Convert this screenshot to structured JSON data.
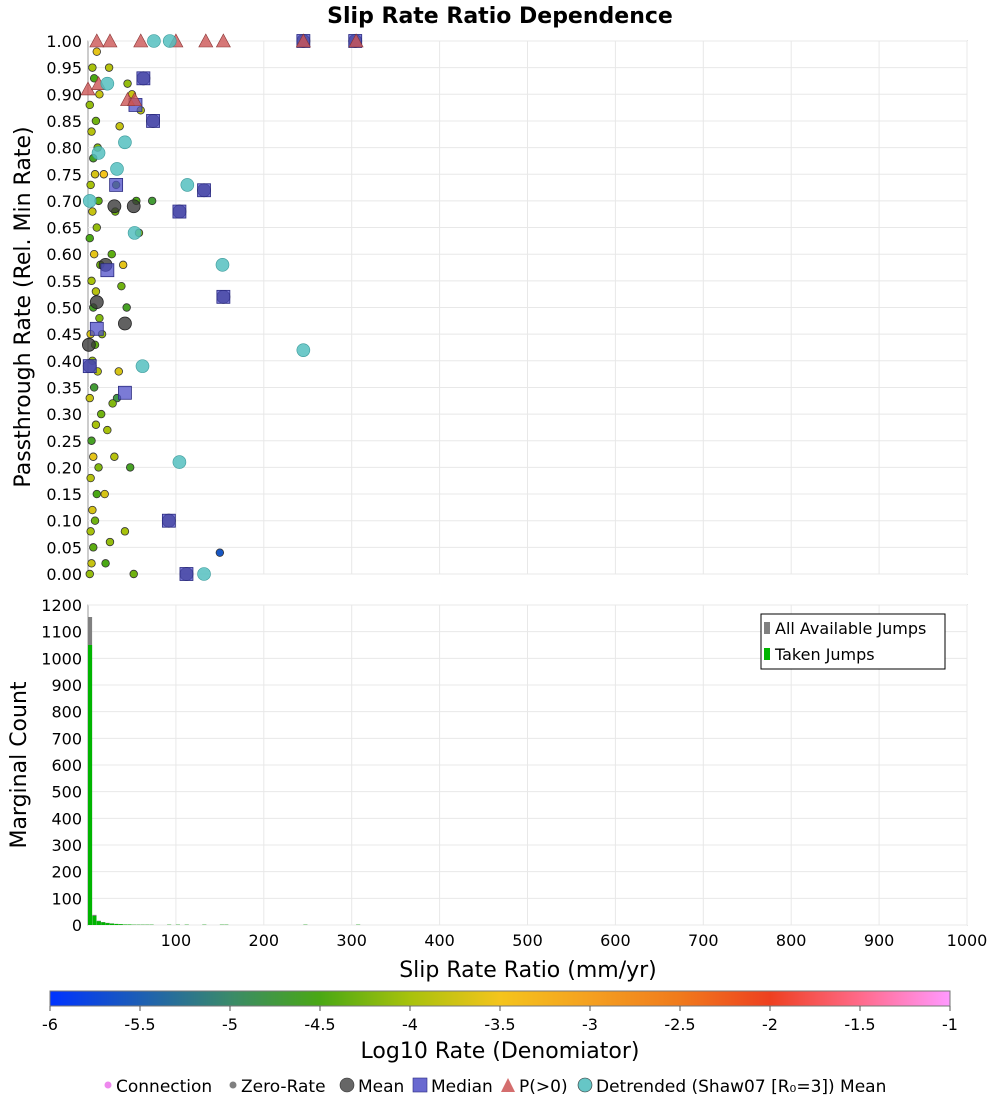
{
  "chart_data": [
    {
      "type": "scatter",
      "title": "Slip Rate Ratio Dependence",
      "ylabel": "Passthrough Rate (Rel. Min Rate)",
      "xlim": [
        0,
        1000
      ],
      "ylim": [
        0,
        1
      ],
      "y_ticks": [
        "0.00",
        "0.05",
        "0.10",
        "0.15",
        "0.20",
        "0.25",
        "0.30",
        "0.35",
        "0.40",
        "0.45",
        "0.50",
        "0.55",
        "0.60",
        "0.65",
        "0.70",
        "0.75",
        "0.80",
        "0.85",
        "0.90",
        "0.95",
        "1.00"
      ],
      "grid": true,
      "series": [
        {
          "name": "Connection",
          "color_scale": "log10_rate",
          "points": [
            [
              2,
              0.0,
              -4.1
            ],
            [
              4,
              0.02,
              -3.8
            ],
            [
              6,
              0.05,
              -4.4
            ],
            [
              3,
              0.08,
              -4.0
            ],
            [
              8,
              0.1,
              -4.3
            ],
            [
              5,
              0.12,
              -3.7
            ],
            [
              10,
              0.15,
              -4.5
            ],
            [
              3,
              0.18,
              -3.9
            ],
            [
              12,
              0.2,
              -4.2
            ],
            [
              6,
              0.22,
              -3.6
            ],
            [
              4,
              0.25,
              -4.6
            ],
            [
              9,
              0.28,
              -4.0
            ],
            [
              15,
              0.3,
              -4.3
            ],
            [
              2,
              0.33,
              -3.8
            ],
            [
              7,
              0.35,
              -4.7
            ],
            [
              11,
              0.38,
              -3.9
            ],
            [
              5,
              0.4,
              -4.1
            ],
            [
              8,
              0.43,
              -4.4
            ],
            [
              3,
              0.45,
              -3.7
            ],
            [
              13,
              0.48,
              -4.2
            ],
            [
              6,
              0.5,
              -4.6
            ],
            [
              9,
              0.53,
              -3.9
            ],
            [
              4,
              0.55,
              -4.0
            ],
            [
              14,
              0.58,
              -4.3
            ],
            [
              7,
              0.6,
              -3.6
            ],
            [
              2,
              0.63,
              -4.5
            ],
            [
              10,
              0.65,
              -4.1
            ],
            [
              5,
              0.68,
              -3.8
            ],
            [
              12,
              0.7,
              -4.4
            ],
            [
              3,
              0.73,
              -4.0
            ],
            [
              8,
              0.75,
              -3.7
            ],
            [
              6,
              0.78,
              -4.6
            ],
            [
              11,
              0.8,
              -4.2
            ],
            [
              4,
              0.83,
              -3.9
            ],
            [
              9,
              0.85,
              -4.3
            ],
            [
              2,
              0.88,
              -4.1
            ],
            [
              13,
              0.9,
              -3.8
            ],
            [
              7,
              0.93,
              -4.5
            ],
            [
              5,
              0.95,
              -4.0
            ],
            [
              10,
              0.98,
              -3.6
            ],
            [
              20,
              0.02,
              -4.5
            ],
            [
              25,
              0.06,
              -4.1
            ],
            [
              30,
              0.22,
              -3.9
            ],
            [
              33,
              0.33,
              -4.8
            ],
            [
              35,
              0.38,
              -3.7
            ],
            [
              28,
              0.32,
              -4.2
            ],
            [
              22,
              0.27,
              -4.0
            ],
            [
              38,
              0.54,
              -4.3
            ],
            [
              40,
              0.58,
              -3.6
            ],
            [
              32,
              0.73,
              -4.4
            ],
            [
              45,
              0.92,
              -4.1
            ],
            [
              50,
              0.9,
              -3.8
            ],
            [
              55,
              0.7,
              -4.5
            ],
            [
              58,
              0.64,
              -4.2
            ],
            [
              60,
              0.87,
              -3.9
            ],
            [
              48,
              0.2,
              -4.6
            ],
            [
              42,
              0.08,
              -4.0
            ],
            [
              52,
              0.0,
              -4.3
            ],
            [
              73,
              0.7,
              -4.7
            ],
            [
              150,
              0.04,
              -5.6
            ],
            [
              18,
              0.75,
              -3.5
            ],
            [
              27,
              0.6,
              -4.4
            ],
            [
              36,
              0.84,
              -3.8
            ],
            [
              44,
              0.5,
              -4.6
            ],
            [
              16,
              0.45,
              -4.1
            ],
            [
              24,
              0.95,
              -3.9
            ],
            [
              31,
              0.68,
              -4.3
            ],
            [
              19,
              0.15,
              -3.7
            ]
          ]
        },
        {
          "name": "Mean",
          "color": "#3a3a3a",
          "points": [
            [
              10,
              0.51
            ],
            [
              20,
              0.58
            ],
            [
              30,
              0.69
            ],
            [
              42,
              0.47
            ],
            [
              52,
              0.69
            ],
            [
              63,
              0.93
            ],
            [
              74,
              0.85
            ],
            [
              104,
              0.68
            ],
            [
              132,
              0.72
            ],
            [
              154,
              0.52
            ],
            [
              92,
              0.1
            ],
            [
              112,
              0.0
            ],
            [
              245,
              1.0
            ],
            [
              304,
              1.0
            ],
            [
              1,
              0.43
            ],
            [
              2,
              0.39
            ]
          ]
        },
        {
          "name": "Median",
          "color": "#4f4fc8",
          "points": [
            [
              10,
              0.46
            ],
            [
              22,
              0.57
            ],
            [
              32,
              0.73
            ],
            [
              42,
              0.34
            ],
            [
              54,
              0.88
            ],
            [
              63,
              0.93
            ],
            [
              74,
              0.85
            ],
            [
              104,
              0.68
            ],
            [
              132,
              0.72
            ],
            [
              154,
              0.52
            ],
            [
              92,
              0.1
            ],
            [
              112,
              0.0
            ],
            [
              245,
              1.0
            ],
            [
              304,
              1.0
            ],
            [
              2,
              0.39
            ]
          ]
        },
        {
          "name": "P(>0)",
          "color": "#cc5555",
          "points": [
            [
              0,
              0.91
            ],
            [
              12,
              0.92
            ],
            [
              45,
              0.89
            ],
            [
              53,
              0.89
            ],
            [
              10,
              1.0
            ],
            [
              25,
              1.0
            ],
            [
              60,
              1.0
            ],
            [
              100,
              1.0
            ],
            [
              134,
              1.0
            ],
            [
              154,
              1.0
            ],
            [
              245,
              1.0
            ],
            [
              305,
              1.0
            ]
          ]
        },
        {
          "name": "Detrended (Shaw07 [R₀=3]) Mean",
          "color": "#55c0c0",
          "points": [
            [
              2,
              0.7
            ],
            [
              12,
              0.79
            ],
            [
              22,
              0.92
            ],
            [
              33,
              0.76
            ],
            [
              42,
              0.81
            ],
            [
              53,
              0.64
            ],
            [
              62,
              0.39
            ],
            [
              104,
              0.21
            ],
            [
              113,
              0.73
            ],
            [
              153,
              0.58
            ],
            [
              132,
              0.0
            ],
            [
              245,
              0.42
            ],
            [
              75,
              1.0
            ],
            [
              93,
              1.0
            ]
          ]
        }
      ]
    },
    {
      "type": "bar",
      "ylabel": "Marginal Count",
      "xlabel": "Slip Rate Ratio (mm/yr)",
      "xlim": [
        0,
        1000
      ],
      "ylim": [
        0,
        1200
      ],
      "x_ticks": [
        "100",
        "200",
        "300",
        "400",
        "500",
        "600",
        "700",
        "800",
        "900",
        "1000"
      ],
      "y_ticks": [
        "0",
        "100",
        "200",
        "300",
        "400",
        "500",
        "600",
        "700",
        "800",
        "900",
        "1000",
        "1100",
        "1200"
      ],
      "grid": true,
      "legend_position": "top-right",
      "bin_width": 5,
      "series": [
        {
          "name": "All Available Jumps",
          "color": "#808080",
          "bins": [
            [
              0,
              1155
            ],
            [
              5,
              38
            ],
            [
              10,
              16
            ],
            [
              15,
              11
            ],
            [
              20,
              8
            ],
            [
              25,
              6
            ],
            [
              30,
              4
            ],
            [
              35,
              3
            ],
            [
              40,
              2
            ],
            [
              45,
              2
            ],
            [
              50,
              1
            ],
            [
              55,
              1
            ],
            [
              60,
              1
            ],
            [
              65,
              1
            ],
            [
              70,
              1
            ],
            [
              90,
              1
            ],
            [
              100,
              1
            ],
            [
              110,
              1
            ],
            [
              130,
              1
            ],
            [
              150,
              1
            ],
            [
              155,
              1
            ],
            [
              245,
              1
            ],
            [
              305,
              1
            ]
          ]
        },
        {
          "name": "Taken Jumps",
          "color": "#00b400",
          "bins": [
            [
              0,
              1050
            ],
            [
              5,
              34
            ],
            [
              10,
              14
            ],
            [
              15,
              10
            ],
            [
              20,
              7
            ],
            [
              25,
              5
            ],
            [
              30,
              4
            ],
            [
              35,
              3
            ],
            [
              40,
              2
            ],
            [
              45,
              2
            ],
            [
              50,
              1
            ],
            [
              55,
              1
            ],
            [
              60,
              1
            ],
            [
              65,
              1
            ],
            [
              70,
              1
            ],
            [
              90,
              1
            ],
            [
              100,
              1
            ],
            [
              110,
              1
            ],
            [
              130,
              1
            ],
            [
              150,
              1
            ],
            [
              155,
              1
            ],
            [
              245,
              1
            ],
            [
              305,
              1
            ]
          ]
        }
      ]
    },
    {
      "type": "colorbar",
      "label": "Log10 Rate (Denomiator)",
      "range": [
        -6,
        -1
      ],
      "ticks": [
        "-6",
        "-5.5",
        "-5",
        "-4.5",
        "-4",
        "-3.5",
        "-3",
        "-2.5",
        "-2",
        "-1.5",
        "-1"
      ],
      "stops": [
        {
          "v": -6,
          "color": "#0033ff"
        },
        {
          "v": -5,
          "color": "#3a8a6a"
        },
        {
          "v": -4.5,
          "color": "#4aa814"
        },
        {
          "v": -4,
          "color": "#a8c20c"
        },
        {
          "v": -3.5,
          "color": "#f4c41c"
        },
        {
          "v": -3,
          "color": "#f4a020"
        },
        {
          "v": -2.5,
          "color": "#f07a1c"
        },
        {
          "v": -2,
          "color": "#ee4020"
        },
        {
          "v": -1.5,
          "color": "#ff6a8a"
        },
        {
          "v": -1,
          "color": "#ff99ff"
        }
      ]
    }
  ],
  "footer_legend": [
    {
      "label": "Connection",
      "symbol": "small-dot",
      "color": "#ee88ee"
    },
    {
      "label": "Zero-Rate",
      "symbol": "small-dot",
      "color": "#808080"
    },
    {
      "label": "Mean",
      "symbol": "circle",
      "color": "#555555"
    },
    {
      "label": "Median",
      "symbol": "square",
      "color": "#4f4fc8"
    },
    {
      "label": "P(>0)",
      "symbol": "triangle",
      "color": "#cc5555"
    },
    {
      "label": "Detrended (Shaw07 [R₀=3]) Mean",
      "symbol": "circle",
      "color": "#55c0c0"
    }
  ]
}
